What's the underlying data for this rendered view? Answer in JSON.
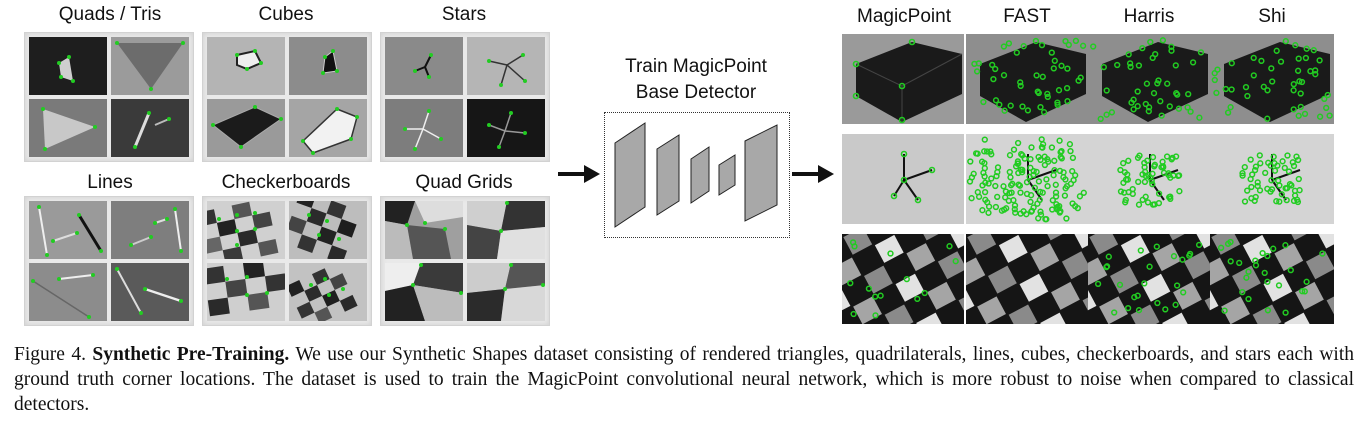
{
  "figure": {
    "groups": [
      {
        "label": "Quads / Tris"
      },
      {
        "label": "Cubes"
      },
      {
        "label": "Stars"
      },
      {
        "label": "Lines"
      },
      {
        "label": "Checkerboards"
      },
      {
        "label": "Quad Grids"
      }
    ],
    "detector_title_line1": "Train MagicPoint",
    "detector_title_line2": "Base Detector",
    "columns": [
      {
        "label": "MagicPoint"
      },
      {
        "label": "FAST"
      },
      {
        "label": "Harris"
      },
      {
        "label": "Shi"
      }
    ],
    "colors": {
      "keypoint": "#22cc22",
      "layer": "#a8a8a8"
    }
  },
  "caption": {
    "prefix": "Figure 4.",
    "title": "Synthetic Pre-Training.",
    "text": "We use our Synthetic Shapes dataset consisting of rendered triangles, quadrilaterals, lines, cubes, checkerboards, and stars each with ground truth corner locations. The dataset is used to train the MagicPoint convolutional neural network, which is more robust to noise when compared to classical detectors."
  }
}
